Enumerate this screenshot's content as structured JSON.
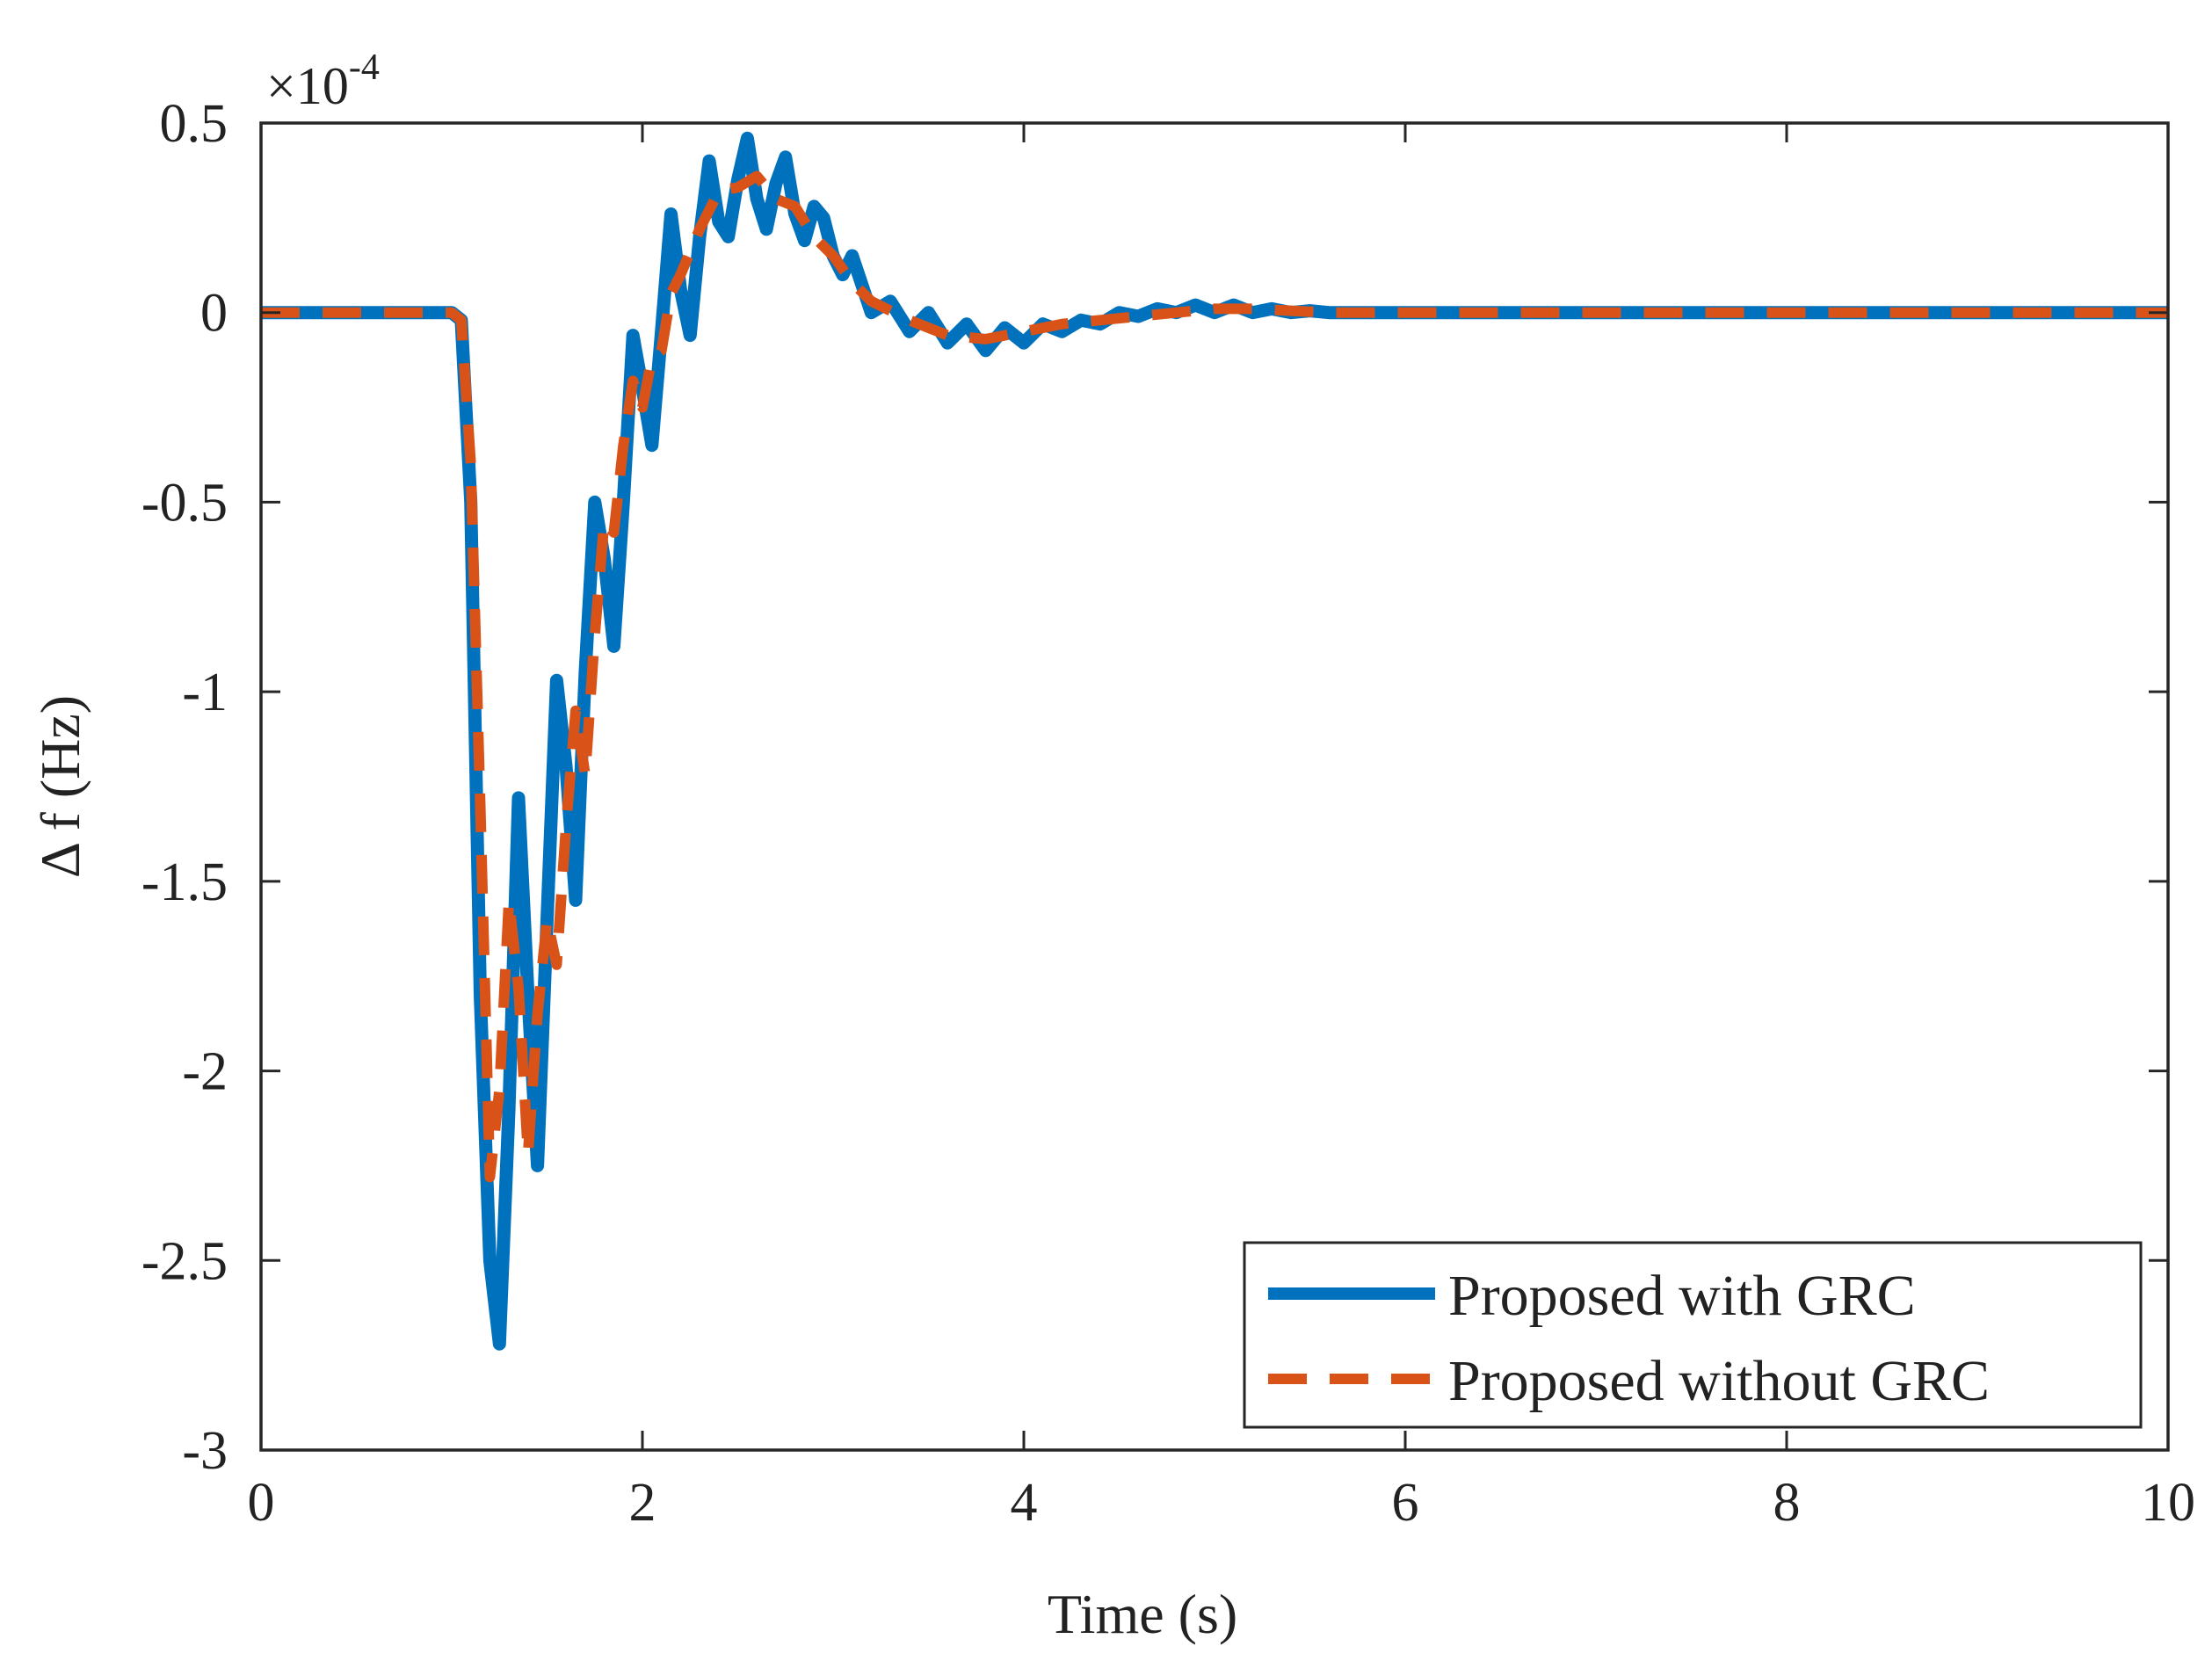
{
  "chart_data": {
    "type": "line",
    "title": "",
    "xlabel": "Time (s)",
    "ylabel": "Δ f (Hz)",
    "xlim": [
      0,
      10
    ],
    "ylim": [
      -3,
      0.5
    ],
    "xticks": [
      0,
      2,
      4,
      6,
      8,
      10
    ],
    "xtick_labels": [
      "0",
      "2",
      "4",
      "6",
      "8",
      "10"
    ],
    "yticks": [
      0.5,
      0,
      -0.5,
      -1,
      -1.5,
      -2,
      -2.5,
      -3
    ],
    "ytick_labels": [
      "0.5",
      "0",
      "-0.5",
      "-1",
      "-1.5",
      "-2",
      "-2.5",
      "-3"
    ],
    "y_exponent_label": {
      "prefix": "×10",
      "exponent": "-4"
    },
    "grid": false,
    "legend_position": "bottom-right",
    "series": [
      {
        "name": "Proposed with GRC",
        "color": "#0072BD",
        "style": "solid",
        "x": [
          0,
          1.0,
          1.05,
          1.1,
          1.15,
          1.2,
          1.25,
          1.3,
          1.35,
          1.4,
          1.45,
          1.5,
          1.55,
          1.6,
          1.65,
          1.7,
          1.75,
          1.8,
          1.85,
          1.9,
          1.95,
          2.0,
          2.05,
          2.1,
          2.15,
          2.2,
          2.25,
          2.3,
          2.35,
          2.4,
          2.45,
          2.5,
          2.55,
          2.6,
          2.65,
          2.7,
          2.75,
          2.8,
          2.85,
          2.9,
          2.95,
          3.0,
          3.05,
          3.1,
          3.2,
          3.3,
          3.4,
          3.5,
          3.6,
          3.7,
          3.8,
          3.9,
          4.0,
          4.1,
          4.2,
          4.3,
          4.4,
          4.5,
          4.6,
          4.7,
          4.8,
          4.9,
          5.0,
          5.1,
          5.2,
          5.3,
          5.4,
          5.5,
          5.6,
          5.8,
          6.0,
          6.5,
          7.0,
          10.0
        ],
        "y": [
          0,
          0,
          -0.02,
          -0.5,
          -1.8,
          -2.5,
          -2.72,
          -2.1,
          -1.28,
          -1.8,
          -2.25,
          -1.6,
          -0.97,
          -1.2,
          -1.55,
          -0.95,
          -0.5,
          -0.65,
          -0.88,
          -0.5,
          -0.06,
          -0.2,
          -0.35,
          -0.05,
          0.26,
          0.06,
          -0.06,
          0.2,
          0.4,
          0.24,
          0.2,
          0.35,
          0.46,
          0.3,
          0.22,
          0.34,
          0.41,
          0.26,
          0.19,
          0.28,
          0.25,
          0.15,
          0.1,
          0.15,
          0.0,
          0.03,
          -0.05,
          0.0,
          -0.08,
          -0.03,
          -0.1,
          -0.04,
          -0.08,
          -0.03,
          -0.05,
          -0.02,
          -0.03,
          0.0,
          -0.01,
          0.01,
          0.0,
          0.02,
          0.0,
          0.02,
          0.0,
          0.01,
          0.0,
          0.005,
          0.0,
          0.0,
          0.0,
          0.0,
          0.0,
          0.0
        ]
      },
      {
        "name": "Proposed without GRC",
        "color": "#D95319",
        "style": "dashed",
        "x": [
          0,
          1.0,
          1.05,
          1.1,
          1.15,
          1.2,
          1.25,
          1.3,
          1.35,
          1.4,
          1.45,
          1.5,
          1.55,
          1.6,
          1.65,
          1.7,
          1.75,
          1.8,
          1.85,
          1.9,
          1.95,
          2.0,
          2.05,
          2.1,
          2.15,
          2.2,
          2.3,
          2.4,
          2.5,
          2.6,
          2.7,
          2.8,
          2.9,
          3.0,
          3.1,
          3.2,
          3.4,
          3.6,
          3.8,
          4.0,
          4.2,
          4.4,
          4.6,
          4.8,
          5.0,
          5.2,
          5.4,
          5.6,
          5.8,
          6.0,
          6.5,
          7.0,
          10.0
        ],
        "y": [
          0,
          0,
          -0.02,
          -0.4,
          -1.3,
          -2.28,
          -2.05,
          -1.55,
          -1.78,
          -2.22,
          -1.85,
          -1.6,
          -1.72,
          -1.35,
          -1.05,
          -1.22,
          -0.85,
          -0.55,
          -0.58,
          -0.35,
          -0.18,
          -0.25,
          -0.12,
          -0.1,
          0.05,
          0.1,
          0.22,
          0.32,
          0.33,
          0.36,
          0.3,
          0.28,
          0.2,
          0.15,
          0.08,
          0.03,
          -0.02,
          -0.06,
          -0.07,
          -0.05,
          -0.03,
          -0.02,
          -0.01,
          0.0,
          0.01,
          0.01,
          0.005,
          0.0,
          0.0,
          0.0,
          0.0,
          0.0,
          0.0
        ]
      }
    ]
  }
}
